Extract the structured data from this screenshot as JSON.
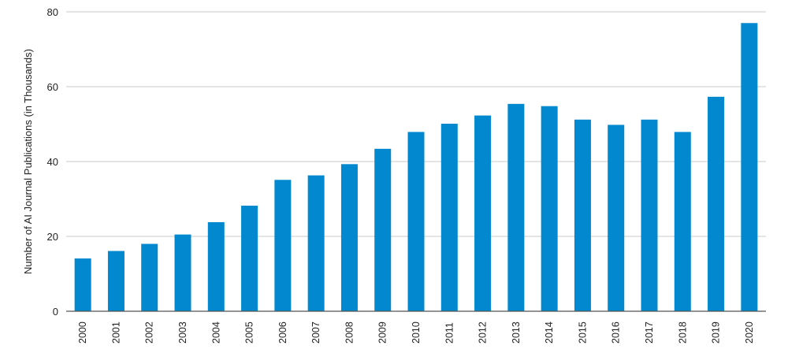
{
  "chart_data": {
    "type": "bar",
    "title": "",
    "xlabel": "",
    "ylabel": "Number of AI Journal Publications (in Thousands)",
    "ylim": [
      0,
      80
    ],
    "yticks": [
      "0",
      "20",
      "40",
      "60",
      "80"
    ],
    "grid": true,
    "categories": [
      "2000",
      "2001",
      "2002",
      "2003",
      "2004",
      "2005",
      "2006",
      "2007",
      "2008",
      "2009",
      "2010",
      "2011",
      "2012",
      "2013",
      "2014",
      "2015",
      "2016",
      "2017",
      "2018",
      "2019",
      "2020"
    ],
    "values": [
      14.1,
      16.1,
      18.0,
      20.5,
      23.8,
      28.2,
      35.1,
      36.3,
      39.3,
      43.4,
      47.9,
      50.1,
      52.3,
      55.4,
      54.8,
      51.2,
      49.8,
      51.2,
      47.9,
      57.3,
      77.0
    ],
    "bar_color": "#0288CE",
    "grid_color": "#c8c8c8",
    "axis_color": "#555555"
  }
}
